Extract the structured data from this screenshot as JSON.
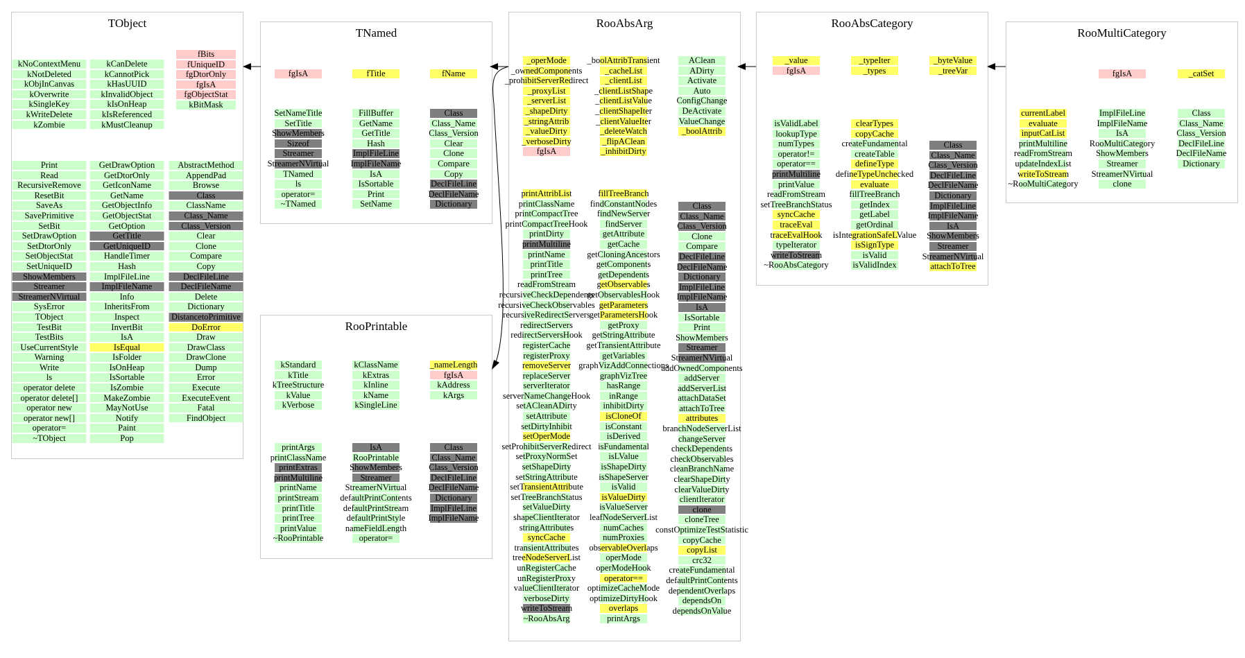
{
  "classes": [
    {
      "id": "tobject",
      "name": "TObject",
      "columns": [
        [
          "kNoContextMenu",
          "kNotDeleted",
          "kObjInCanvas",
          "kOverwrite",
          "kSingleKey",
          "kWriteDelete",
          "kZombie"
        ],
        [
          "kCanDelete",
          "kCannotPick",
          "kHasUUID",
          "kInvalidObject",
          "kIsOnHeap",
          "kIsReferenced",
          "kMustCleanup"
        ],
        [
          "fBits",
          "fUniqueID",
          "fgDtorOnly",
          "fgIsA",
          "fgObjectStat",
          "kBitMask"
        ],
        [
          "Print",
          "Read",
          "RecursiveRemove",
          "ResetBit",
          "SaveAs",
          "SavePrimitive",
          "SetBit",
          "SetDrawOption",
          "SetDtorOnly",
          "SetObjectStat",
          "SetUniqueID",
          "ShowMembers",
          "Streamer",
          "StreamerNVirtual",
          "SysError",
          "TObject",
          "TestBit",
          "TestBits",
          "UseCurrentStyle",
          "Warning",
          "Write",
          "ls",
          "operator delete",
          "operator delete[]",
          "operator new",
          "operator new[]",
          "operator=",
          "~TObject"
        ],
        [
          "GetDrawOption",
          "GetDtorOnly",
          "GetIconName",
          "GetName",
          "GetObjectInfo",
          "GetObjectStat",
          "GetOption",
          "GetTitle",
          "GetUniqueID",
          "HandleTimer",
          "Hash",
          "ImplFileLine",
          "ImplFileName",
          "Info",
          "InheritsFrom",
          "Inspect",
          "InvertBit",
          "IsA",
          "IsEqual",
          "IsFolder",
          "IsOnHeap",
          "IsSortable",
          "IsZombie",
          "MakeZombie",
          "MayNotUse",
          "Notify",
          "Paint",
          "Pop"
        ],
        [
          "AbstractMethod",
          "AppendPad",
          "Browse",
          "Class",
          "ClassName",
          "Class_Name",
          "Class_Version",
          "Clear",
          "Clone",
          "Compare",
          "Copy",
          "DeclFileLine",
          "DeclFileName",
          "Delete",
          "Dictionary",
          "DistancetoPrimitive",
          "DoError",
          "Draw",
          "DrawClass",
          "DrawClone",
          "Dump",
          "Error",
          "Execute",
          "ExecuteEvent",
          "Fatal",
          "FindObject"
        ]
      ]
    },
    {
      "id": "tnamed",
      "name": "TNamed",
      "columns": [
        [
          "fgIsA"
        ],
        [
          "fTitle"
        ],
        [
          "fName"
        ],
        [
          "SetNameTitle",
          "SetTitle",
          "ShowMembers",
          "Sizeof",
          "Streamer",
          "StreamerNVirtual",
          "TNamed",
          "ls",
          "operator=",
          "~TNamed"
        ],
        [
          "FillBuffer",
          "GetName",
          "GetTitle",
          "Hash",
          "ImplFileLine",
          "ImplFileName",
          "IsA",
          "IsSortable",
          "Print",
          "SetName"
        ],
        [
          "Class",
          "Class_Name",
          "Class_Version",
          "Clear",
          "Clone",
          "Compare",
          "Copy",
          "DeclFileLine",
          "DeclFileName",
          "Dictionary"
        ]
      ]
    },
    {
      "id": "rooprintable",
      "name": "RooPrintable",
      "columns": [
        [
          "kStandard",
          "kTitle",
          "kTreeStructure",
          "kValue",
          "kVerbose"
        ],
        [
          "kClassName",
          "kExtras",
          "kInline",
          "kName",
          "kSingleLine"
        ],
        [
          "_nameLength",
          "fgIsA",
          "kAddress",
          "kArgs"
        ],
        [
          "printArgs",
          "printClassName",
          "printExtras",
          "printMultiline",
          "printName",
          "printStream",
          "printTitle",
          "printTree",
          "printValue",
          "~RooPrintable"
        ],
        [
          "IsA",
          "RooPrintable",
          "ShowMembers",
          "Streamer",
          "StreamerNVirtual",
          "defaultPrintContents",
          "defaultPrintStream",
          "defaultPrintStyle",
          "nameFieldLength",
          "operator="
        ],
        [
          "Class",
          "Class_Name",
          "Class_Version",
          "DeclFileLine",
          "DeclFileName",
          "Dictionary",
          "ImplFileLine",
          "ImplFileName"
        ]
      ]
    },
    {
      "id": "rooabsarg",
      "name": "RooAbsArg",
      "columns": [
        [
          "_operMode",
          "_ownedComponents",
          "_prohibitServerRedirect",
          "_proxyList",
          "_serverList",
          "_shapeDirty",
          "_stringAttrib",
          "_valueDirty",
          "_verboseDirty",
          "fgIsA"
        ],
        [
          "_boolAttribTransient",
          "_cacheList",
          "_clientList",
          "_clientListShape",
          "_clientListValue",
          "_clientShapeIter",
          "_clientValueIter",
          "_deleteWatch",
          "_flipAClean",
          "_inhibitDirty"
        ],
        [
          "AClean",
          "ADirty",
          "Activate",
          "Auto",
          "ConfigChange",
          "DeActivate",
          "ValueChange",
          "_boolAttrib"
        ],
        [
          "printAttribList",
          "printClassName",
          "printCompactTree",
          "printCompactTreeHook",
          "printDirty",
          "printMultiline",
          "printName",
          "printTitle",
          "printTree",
          "readFromStream",
          "recursiveCheckDependents",
          "recursiveCheckObservables",
          "recursiveRedirectServers",
          "redirectServers",
          "redirectServersHook",
          "registerCache",
          "registerProxy",
          "removeServer",
          "replaceServer",
          "serverIterator",
          "serverNameChangeHook",
          "setACleanADirty",
          "setAttribute",
          "setDirtyInhibit",
          "setOperMode",
          "setProhibitServerRedirect",
          "setProxyNormSet",
          "setShapeDirty",
          "setStringAttribute",
          "setTransientAttribute",
          "setTreeBranchStatus",
          "setValueDirty",
          "shapeClientIterator",
          "stringAttributes",
          "syncCache",
          "transientAttributes",
          "treeNodeServerList",
          "unRegisterCache",
          "unRegisterProxy",
          "valueClientIterator",
          "verboseDirty",
          "writeToStream",
          "~RooAbsArg"
        ],
        [
          "fillTreeBranch",
          "findConstantNodes",
          "findNewServer",
          "findServer",
          "getAttribute",
          "getCache",
          "getCloningAncestors",
          "getComponents",
          "getDependents",
          "getObservables",
          "getObservablesHook",
          "getParameters",
          "getParametersHook",
          "getProxy",
          "getStringAttribute",
          "getTransientAttribute",
          "getVariables",
          "graphVizAddConnections",
          "graphVizTree",
          "hasRange",
          "inRange",
          "inhibitDirty",
          "isCloneOf",
          "isConstant",
          "isDerived",
          "isFundamental",
          "isLValue",
          "isShapeDirty",
          "isShapeServer",
          "isValid",
          "isValueDirty",
          "isValueServer",
          "leafNodeServerList",
          "numCaches",
          "numProxies",
          "observableOverlaps",
          "operMode",
          "operModeHook",
          "operator==",
          "optimizeCacheMode",
          "optimizeDirtyHook",
          "overlaps",
          "printArgs"
        ],
        [
          "Class",
          "Class_Name",
          "Class_Version",
          "Clone",
          "Compare",
          "DeclFileLine",
          "DeclFileName",
          "Dictionary",
          "ImplFileLine",
          "ImplFileName",
          "IsA",
          "IsSortable",
          "Print",
          "ShowMembers",
          "Streamer",
          "StreamerNVirtual",
          "addOwnedComponents",
          "addServer",
          "addServerList",
          "attachDataSet",
          "attachToTree",
          "attributes",
          "branchNodeServerList",
          "changeServer",
          "checkDependents",
          "checkObservables",
          "cleanBranchName",
          "clearShapeDirty",
          "clearValueDirty",
          "clientIterator",
          "clone",
          "cloneTree",
          "constOptimizeTestStatistic",
          "copyCache",
          "copyList",
          "crc32",
          "createFundamental",
          "defaultPrintContents",
          "dependentOverlaps",
          "dependsOn",
          "dependsOnValue"
        ]
      ]
    },
    {
      "id": "rooabscategory",
      "name": "RooAbsCategory",
      "columns": [
        [
          "_value",
          "fgIsA"
        ],
        [
          "_typeIter",
          "_types"
        ],
        [
          "_byteValue",
          "_treeVar"
        ],
        [
          "isValidLabel",
          "lookupType",
          "numTypes",
          "operator!=",
          "operator==",
          "printMultiline",
          "printValue",
          "readFromStream",
          "setTreeBranchStatus",
          "syncCache",
          "traceEval",
          "traceEvalHook",
          "typeIterator",
          "writeToStream",
          "~RooAbsCategory"
        ],
        [
          "clearTypes",
          "copyCache",
          "createFundamental",
          "createTable",
          "defineType",
          "defineTypeUnchecked",
          "evaluate",
          "fillTreeBranch",
          "getIndex",
          "getLabel",
          "getOrdinal",
          "isIntegrationSafeLValue",
          "isSignType",
          "isValid",
          "isValidIndex"
        ],
        [
          "Class",
          "Class_Name",
          "Class_Version",
          "DeclFileLine",
          "DeclFileName",
          "Dictionary",
          "ImplFileLine",
          "ImplFileName",
          "IsA",
          "ShowMembers",
          "Streamer",
          "StreamerNVirtual",
          "attachToTree"
        ]
      ]
    },
    {
      "id": "roomulticategory",
      "name": "RooMultiCategory",
      "columns": [
        [
          "fgIsA"
        ],
        [
          "_catSet"
        ],
        [
          "currentLabel",
          "evaluate",
          "inputCatList",
          "printMultiline",
          "readFromStream",
          "updateIndexList",
          "writeToStream",
          "~RooMultiCategory"
        ],
        [
          "ImplFileLine",
          "ImplFileName",
          "IsA",
          "RooMultiCategory",
          "ShowMembers",
          "Streamer",
          "StreamerNVirtual",
          "clone"
        ],
        [
          "Class",
          "Class_Name",
          "Class_Version",
          "DeclFileLine",
          "DeclFileName",
          "Dictionary"
        ]
      ]
    }
  ],
  "legend_colors": {
    "public": "#ccffcc",
    "protected": "#ffff66",
    "private": "#ffcccc",
    "inherited": "#7f7f7f"
  }
}
